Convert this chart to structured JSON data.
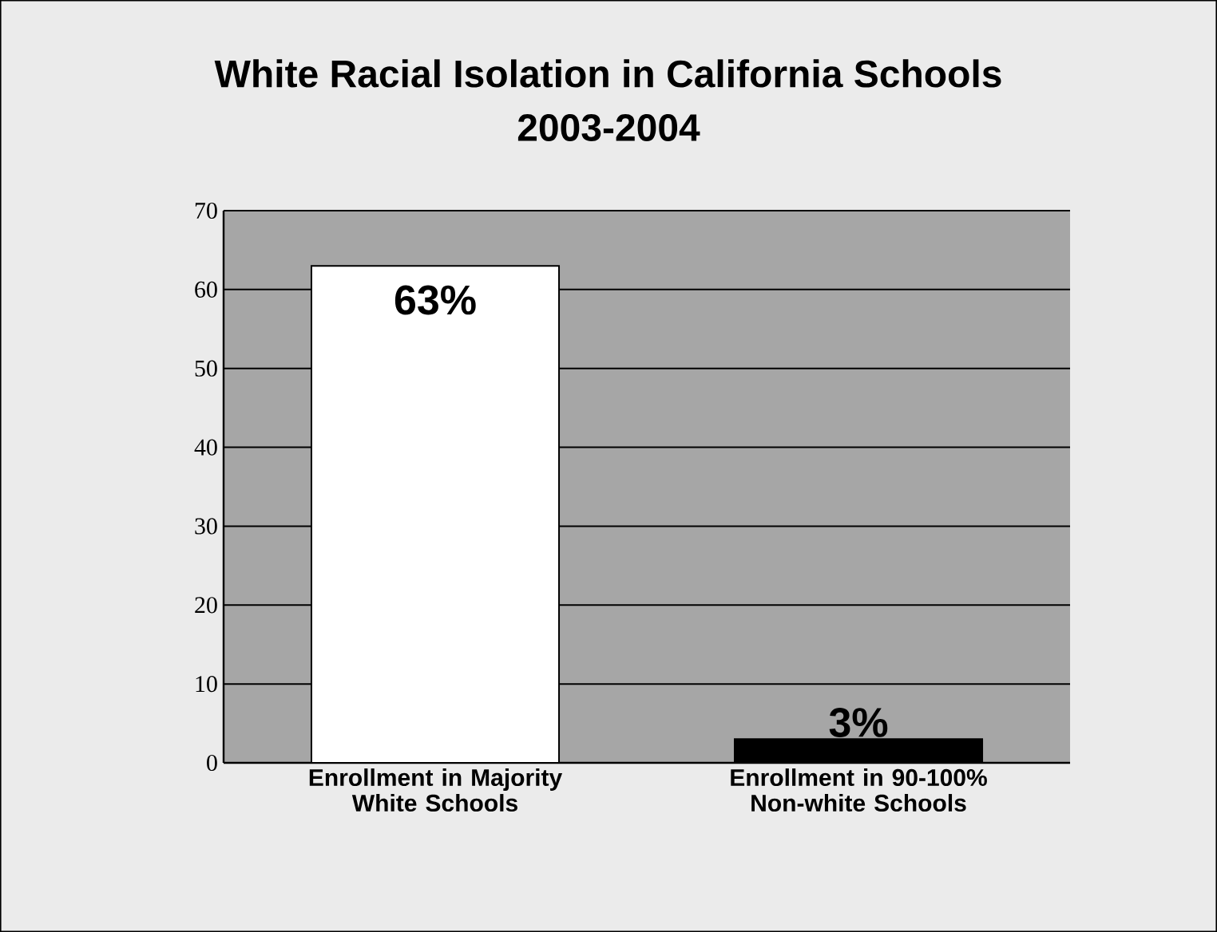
{
  "chart_data": {
    "type": "bar",
    "title": "White Racial Isolation in California Schools",
    "subtitle": "2003-2004",
    "categories": [
      "Enrollment in Majority White Schools",
      "Enrollment in 90-100% Non-white Schools"
    ],
    "values": [
      63,
      3
    ],
    "colors": [
      "#ffffff",
      "#000000"
    ],
    "value_labels": [
      "63%",
      "3%"
    ],
    "ylim": [
      0,
      70
    ],
    "yticks": [
      0,
      10,
      20,
      30,
      40,
      50,
      60,
      70
    ],
    "grid": "y"
  }
}
